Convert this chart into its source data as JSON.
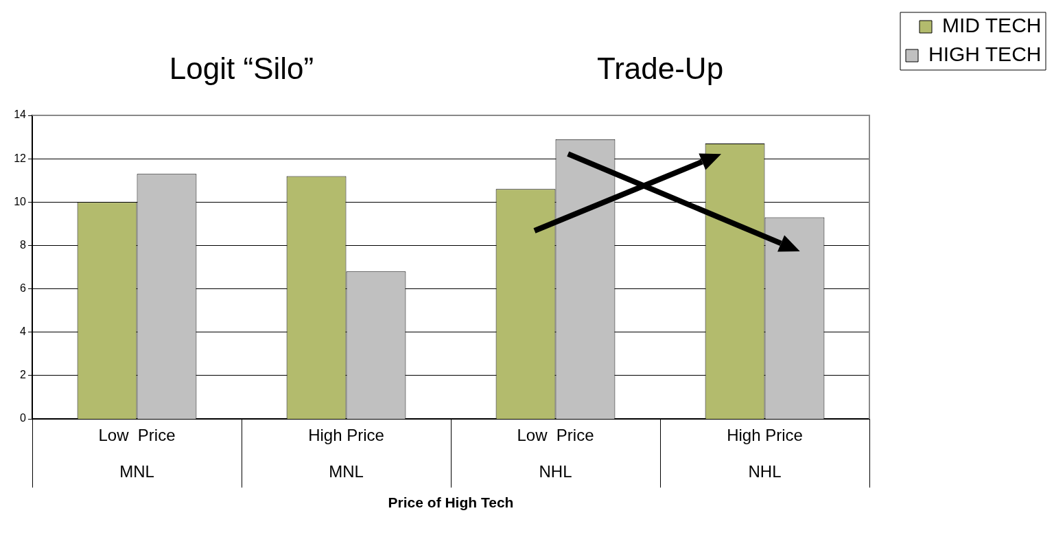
{
  "chart_data": {
    "type": "bar",
    "categories": [
      "Low  Price\nMNL",
      "High Price\nMNL",
      "Low  Price\nNHL",
      "High Price\nNHL"
    ],
    "series": [
      {
        "name": "MID TECH",
        "color": "#b3bb6d",
        "values": [
          10.0,
          11.2,
          10.6,
          12.7
        ]
      },
      {
        "name": "HIGH TECH",
        "color": "#c0c0c0",
        "values": [
          11.3,
          6.8,
          12.9,
          9.3
        ]
      }
    ],
    "ylim": [
      0,
      14
    ],
    "yticks": [
      0,
      2,
      4,
      6,
      8,
      10,
      12,
      14
    ],
    "grid": "y",
    "legend": "top right",
    "xlabel": "Price of High Tech",
    "annotations": [
      "Logit “Silo”",
      "Trade-Up"
    ]
  }
}
